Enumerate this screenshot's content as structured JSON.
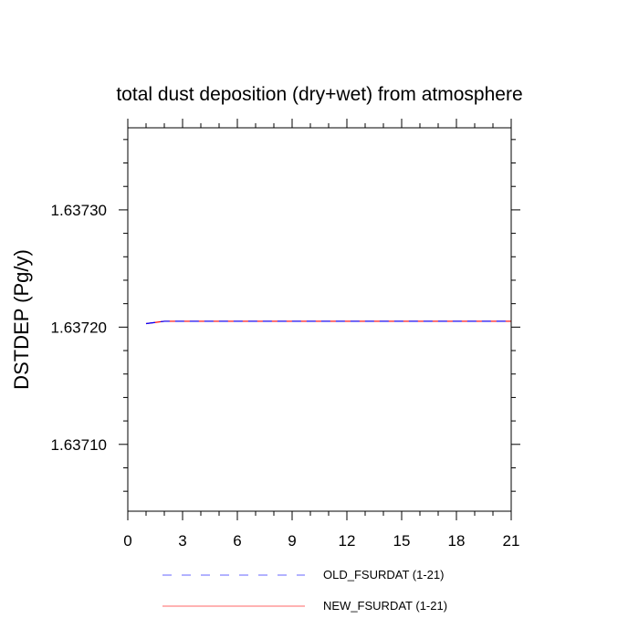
{
  "chart_data": {
    "type": "line",
    "title": "total dust deposition (dry+wet) from atmosphere",
    "xlabel": "",
    "ylabel": "DSTDEP  (Pg/y)",
    "xlim": [
      0,
      21
    ],
    "ylim": [
      1.637043,
      1.63737
    ],
    "x_ticks": [
      0,
      3,
      6,
      9,
      12,
      15,
      18,
      21
    ],
    "x_tick_labels": [
      "0",
      "3",
      "6",
      "9",
      "12",
      "15",
      "18",
      "21"
    ],
    "y_ticks": [
      1.6371,
      1.6372,
      1.6373
    ],
    "y_tick_labels": [
      "1.63710",
      "1.63720",
      "1.63730"
    ],
    "grid": false,
    "legend_position": "bottom",
    "x": [
      1,
      2,
      3,
      4,
      5,
      6,
      7,
      8,
      9,
      10,
      11,
      12,
      13,
      14,
      15,
      16,
      17,
      18,
      19,
      20,
      21
    ],
    "series": [
      {
        "name": "OLD_FSURDAT (1-21)",
        "style": "dashed",
        "color": "#0000ff",
        "values": [
          1.637203,
          1.637205,
          1.637205,
          1.637205,
          1.637205,
          1.637205,
          1.637205,
          1.637205,
          1.637205,
          1.637205,
          1.637205,
          1.637205,
          1.637205,
          1.637205,
          1.637205,
          1.637205,
          1.637205,
          1.637205,
          1.637205,
          1.637205,
          1.637205
        ]
      },
      {
        "name": "NEW_FSURDAT (1-21)",
        "style": "solid",
        "color": "#ff0000",
        "values": [
          1.637203,
          1.637205,
          1.637205,
          1.637205,
          1.637205,
          1.637205,
          1.637205,
          1.637205,
          1.637205,
          1.637205,
          1.637205,
          1.637205,
          1.637205,
          1.637205,
          1.637205,
          1.637205,
          1.637205,
          1.637205,
          1.637205,
          1.637205,
          1.637205
        ]
      }
    ]
  }
}
